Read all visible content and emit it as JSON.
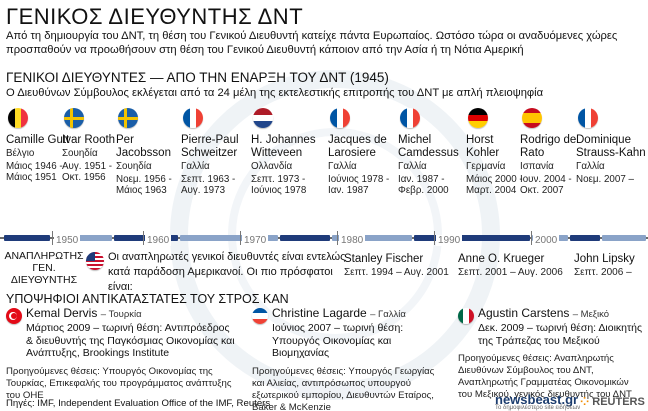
{
  "title": "ΓΕΝΙΚΟΣ ΔΙΕΥΘΥΝΤΗΣ ΔΝΤ",
  "intro": "Από τη δημιουργία του ΔΝΤ, τη θέση του Γενικού Διευθυντή κατείχε πάντα Ευρωπαίος. Ωστόσο τώρα οι αναδυόμενες χώρες προσπαθούν να προωθήσουν στη θέση του Γενικού Διευθυντή κάποιον από την Ασία ή τη Νότια Αμερική",
  "section": {
    "heading": "ΓΕΝΙΚΟΙ ΔΙΕΥΘΥΝΤΕΣ — ΑΠΟ ΤΗΝ ΕΝΑΡΞΗ ΤΟΥ ΔΝΤ (1945)",
    "subheading": "Ο Διευθύνων Σύμβουλος εκλέγεται από τα 24 μέλη της εκτελεστικής επιτροπής του ΔΝΤ με απλή πλειοψηφία"
  },
  "directors": [
    {
      "name": "Camille Gutt",
      "country": "Βέλγιο",
      "term": "Μάιος 1946 - Μάιος 1951",
      "flag": "belgium"
    },
    {
      "name": "Ivar Rooth",
      "country": "Σουηδία",
      "term": "Αυγ. 1951 - Οκτ. 1956",
      "flag": "sweden"
    },
    {
      "name": "Per Jacobsson",
      "country": "Σουηδία",
      "term": "Νοεμ. 1956 - Μάιος 1963",
      "flag": "sweden"
    },
    {
      "name": "Pierre-Paul Schweitzer",
      "country": "Γαλλία",
      "term": "Σεπτ. 1963 - Αυγ. 1973",
      "flag": "france"
    },
    {
      "name": "H. Johannes Witteveen",
      "country": "Ολλανδία",
      "term": "Σεπτ. 1973 - Ιούνιος 1978",
      "flag": "netherlands"
    },
    {
      "name": "Jacques de Larosiere",
      "country": "Γαλλία",
      "term": "Ιούνιος 1978 - Ιαν. 1987",
      "flag": "france"
    },
    {
      "name": "Michel Camdessus",
      "country": "Γαλλία",
      "term": "Ιαν. 1987 - Φεβρ. 2000",
      "flag": "france"
    },
    {
      "name": "Horst Kohler",
      "country": "Γερμανία",
      "term": "Μάιος 2000 - Μαρτ. 2004",
      "flag": "germany"
    },
    {
      "name": "Rodrigo de Rato",
      "country": "Ισπανία",
      "term": "Ιουν. 2004 - Οκτ. 2007",
      "flag": "spain"
    },
    {
      "name": "Dominique Strauss-Kahn",
      "country": "Γαλλία",
      "term": "Νοεμ. 2007 –",
      "flag": "france"
    }
  ],
  "timeline": {
    "years": [
      "1950",
      "1960",
      "1970",
      "1980",
      "1990",
      "2000"
    ]
  },
  "deputies": {
    "label": "ΑΝΑΠΛΗΡΩΤΗΣ ΓΕΝ. ΔΙΕΥΘΥΝΤΗΣ",
    "text": "Οι αναπληρωτές γενικοί διευθυντές είναι εντελώς κατά παράδοση Αμερικανοί. Οι πιο πρόσφατοι είναι:",
    "people": [
      {
        "name": "Stanley Fischer",
        "term": "Σεπτ. 1994 – Αυγ. 2001"
      },
      {
        "name": "Anne O. Krueger",
        "term": "Σεπτ. 2001 – Αυγ. 2006"
      },
      {
        "name": "John Lipsky",
        "term": "Σεπτ. 2006 –"
      }
    ]
  },
  "candidates_heading": "ΥΠΟΨΗΦΙΟΙ ΑΝΤΙΚΑΤΑΣΤΑΤΕΣ ΤΟΥ ΣΤΡΟΣ ΚΑΝ",
  "candidates": [
    {
      "name": "Kemal Dervis",
      "country": "– Τουρκία",
      "role": "Μάρτιος 2009 – τωρινή θέση: Αντιπρόεδρος & διευθυντής της Παγκόσμιας Οικονομίας και Ανάπτυξης, Brookings Institute",
      "previous": "Προηγούμενες θέσεις: Υπουργός Οικονομίας της Τουρκίας, Επικεφαλής του προγράμματος ανάπτυξης του ΟΗΕ",
      "flag": "turkey"
    },
    {
      "name": "Christine Lagarde",
      "country": "– Γαλλία",
      "role": "Ιούνιος 2007 – τωρινή θέση: Υπουργός Οικονομίας και Βιομηχανίας",
      "previous": "Προηγούμενες θέσεις: Υπουργός Γεωργίας και Αλιείας, αντιπρόσωπος υπουργού εξωτερικού εμπορίου, Διευθυντών Εταίρος, Baker & McKenzie",
      "flag": "france"
    },
    {
      "name": "Agustin Carstens",
      "country": "– Μεξικό",
      "role": "Δεκ. 2009 – τωρινή θέση: Διοικητής της Τράπεζας του Μεξικού",
      "previous": "Προηγούμενες θέσεις: Αναπληρωτής Διευθύνων Σύμβουλος του ΔΝΤ, Αναπληρωτής Γραμματέας Οικονομικών του Μεξικού, γενικός διευθυντής του ΔΝΤ",
      "flag": "mexico"
    }
  ],
  "sources": "Πηγές: IMF, Independent Evaluation Office of the IMF, Reuters",
  "brand": {
    "name": "newsbeast.gr",
    "tagline": "Το δημοφιλέστερο site ειδήσεων"
  },
  "reuters": "REUTERS",
  "colors": {
    "belgium": [
      "#000000",
      "#fdda24",
      "#ef3340"
    ],
    "sweden": "#1a5ea8",
    "france": [
      "#0055a4",
      "#ffffff",
      "#ef4135"
    ],
    "netherlands": [
      "#ae1c28",
      "#ffffff",
      "#21468b"
    ],
    "germany": [
      "#000000",
      "#dd0000",
      "#ffce00"
    ],
    "spain": [
      "#c60b1e",
      "#ffc400",
      "#c60b1e"
    ],
    "mexico": [
      "#006847",
      "#ffffff",
      "#ce1126"
    ],
    "timeline_segment": "#1f3b7a"
  }
}
